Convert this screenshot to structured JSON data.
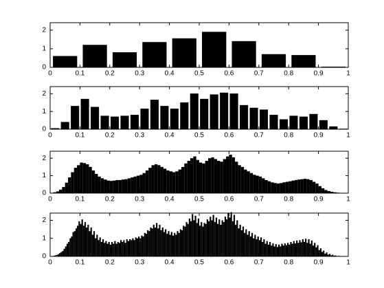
{
  "chart_data": [
    {
      "type": "histogram",
      "color": "#000000",
      "xlim": [
        0,
        1
      ],
      "ylim": [
        0,
        2.4
      ],
      "xticks": [
        0,
        0.1,
        0.2,
        0.3,
        0.4,
        0.5,
        0.6,
        0.7,
        0.8,
        0.9,
        1
      ],
      "yticks": [
        0,
        1,
        2
      ],
      "bins": [
        0,
        0.1,
        0.2,
        0.3,
        0.4,
        0.5,
        0.6,
        0.7,
        0.8,
        0.9,
        1
      ],
      "values": [
        0.6,
        1.2,
        0.8,
        1.35,
        1.55,
        1.9,
        1.4,
        0.7,
        0.65,
        0.03
      ]
    },
    {
      "type": "histogram",
      "color": "#000000",
      "xlim": [
        0,
        1
      ],
      "ylim": [
        0,
        2.4
      ],
      "xticks": [
        0,
        0.1,
        0.2,
        0.3,
        0.4,
        0.5,
        0.6,
        0.7,
        0.8,
        0.9,
        1
      ],
      "yticks": [
        0,
        1,
        2
      ],
      "bins": [
        0,
        0.0333,
        0.0667,
        0.1,
        0.1333,
        0.1667,
        0.2,
        0.2333,
        0.2667,
        0.3,
        0.3333,
        0.3667,
        0.4,
        0.4333,
        0.4667,
        0.5,
        0.5333,
        0.5667,
        0.6,
        0.6333,
        0.6667,
        0.7,
        0.7333,
        0.7667,
        0.8,
        0.8333,
        0.8667,
        0.9,
        0.9333,
        0.9667,
        1
      ],
      "values": [
        0.05,
        0.4,
        1.3,
        1.7,
        1.25,
        0.75,
        0.7,
        0.75,
        0.8,
        1.15,
        1.65,
        1.3,
        1.15,
        1.5,
        2.0,
        1.7,
        1.95,
        2.05,
        2.0,
        1.35,
        1.2,
        1.1,
        0.8,
        0.55,
        0.75,
        0.7,
        0.85,
        0.5,
        0.15,
        0.02
      ]
    },
    {
      "type": "histogram",
      "color": "#000000",
      "xlim": [
        0,
        1
      ],
      "ylim": [
        0,
        2.4
      ],
      "xticks": [
        0,
        0.1,
        0.2,
        0.3,
        0.4,
        0.5,
        0.6,
        0.7,
        0.8,
        0.9,
        1
      ],
      "yticks": [
        0,
        1,
        2
      ],
      "bins": [
        0,
        0.01,
        0.02,
        0.03,
        0.04,
        0.05,
        0.06,
        0.07,
        0.08,
        0.09,
        0.1,
        0.11,
        0.12,
        0.13,
        0.14,
        0.15,
        0.16,
        0.17,
        0.18,
        0.19,
        0.2,
        0.21,
        0.22,
        0.23,
        0.24,
        0.25,
        0.26,
        0.27,
        0.28,
        0.29,
        0.3,
        0.31,
        0.32,
        0.33,
        0.34,
        0.35,
        0.36,
        0.37,
        0.38,
        0.39,
        0.4,
        0.41,
        0.42,
        0.43,
        0.44,
        0.45,
        0.46,
        0.47,
        0.48,
        0.49,
        0.5,
        0.51,
        0.52,
        0.53,
        0.54,
        0.55,
        0.56,
        0.57,
        0.58,
        0.59,
        0.6,
        0.61,
        0.62,
        0.63,
        0.64,
        0.65,
        0.66,
        0.67,
        0.68,
        0.69,
        0.7,
        0.71,
        0.72,
        0.73,
        0.74,
        0.75,
        0.76,
        0.77,
        0.78,
        0.79,
        0.8,
        0.81,
        0.82,
        0.83,
        0.84,
        0.85,
        0.86,
        0.87,
        0.88,
        0.89,
        0.9,
        0.91,
        0.92,
        0.93,
        0.94,
        0.95,
        0.96,
        0.97,
        0.98,
        0.99,
        1
      ],
      "values": [
        0.02,
        0.05,
        0.1,
        0.2,
        0.35,
        0.6,
        0.9,
        1.2,
        1.45,
        1.6,
        1.75,
        1.72,
        1.65,
        1.5,
        1.3,
        1.1,
        0.95,
        0.85,
        0.78,
        0.72,
        0.7,
        0.72,
        0.75,
        0.75,
        0.78,
        0.8,
        0.85,
        0.9,
        0.95,
        1.0,
        1.05,
        1.15,
        1.3,
        1.45,
        1.6,
        1.65,
        1.6,
        1.5,
        1.4,
        1.3,
        1.25,
        1.2,
        1.25,
        1.35,
        1.5,
        1.7,
        1.85,
        2.0,
        2.1,
        1.9,
        1.75,
        1.7,
        1.85,
        2.0,
        2.05,
        1.95,
        1.85,
        1.8,
        1.95,
        2.1,
        2.2,
        2.05,
        1.8,
        1.6,
        1.5,
        1.35,
        1.25,
        1.15,
        1.05,
        1.0,
        0.95,
        0.85,
        0.75,
        0.68,
        0.62,
        0.58,
        0.55,
        0.58,
        0.62,
        0.65,
        0.68,
        0.72,
        0.75,
        0.78,
        0.8,
        0.82,
        0.8,
        0.75,
        0.65,
        0.55,
        0.4,
        0.28,
        0.18,
        0.12,
        0.08,
        0.05,
        0.03,
        0.02,
        0.01,
        0
      ]
    },
    {
      "type": "histogram",
      "color": "#000000",
      "xlim": [
        0,
        1
      ],
      "ylim": [
        0,
        2.4
      ],
      "xticks": [
        0,
        0.1,
        0.2,
        0.3,
        0.4,
        0.5,
        0.6,
        0.7,
        0.8,
        0.9,
        1
      ],
      "yticks": [
        0,
        1,
        2
      ],
      "bins": [
        0,
        0.005,
        0.01,
        0.015,
        0.02,
        0.025,
        0.03,
        0.035,
        0.04,
        0.045,
        0.05,
        0.055,
        0.06,
        0.065,
        0.07,
        0.075,
        0.08,
        0.085,
        0.09,
        0.095,
        0.1,
        0.105,
        0.11,
        0.115,
        0.12,
        0.125,
        0.13,
        0.135,
        0.14,
        0.145,
        0.15,
        0.155,
        0.16,
        0.165,
        0.17,
        0.175,
        0.18,
        0.185,
        0.19,
        0.195,
        0.2,
        0.205,
        0.21,
        0.215,
        0.22,
        0.225,
        0.23,
        0.235,
        0.24,
        0.245,
        0.25,
        0.255,
        0.26,
        0.265,
        0.27,
        0.275,
        0.28,
        0.285,
        0.29,
        0.295,
        0.3,
        0.305,
        0.31,
        0.315,
        0.32,
        0.325,
        0.33,
        0.335,
        0.34,
        0.345,
        0.35,
        0.355,
        0.36,
        0.365,
        0.37,
        0.375,
        0.38,
        0.385,
        0.39,
        0.395,
        0.4,
        0.405,
        0.41,
        0.415,
        0.42,
        0.425,
        0.43,
        0.435,
        0.44,
        0.445,
        0.45,
        0.455,
        0.46,
        0.465,
        0.47,
        0.475,
        0.48,
        0.485,
        0.49,
        0.495,
        0.5,
        0.505,
        0.51,
        0.515,
        0.52,
        0.525,
        0.53,
        0.535,
        0.54,
        0.545,
        0.55,
        0.555,
        0.56,
        0.565,
        0.57,
        0.575,
        0.58,
        0.585,
        0.59,
        0.595,
        0.6,
        0.605,
        0.61,
        0.615,
        0.62,
        0.625,
        0.63,
        0.635,
        0.64,
        0.645,
        0.65,
        0.655,
        0.66,
        0.665,
        0.67,
        0.675,
        0.68,
        0.685,
        0.69,
        0.695,
        0.7,
        0.705,
        0.71,
        0.715,
        0.72,
        0.725,
        0.73,
        0.735,
        0.74,
        0.745,
        0.75,
        0.755,
        0.76,
        0.765,
        0.77,
        0.775,
        0.78,
        0.785,
        0.79,
        0.795,
        0.8,
        0.805,
        0.81,
        0.815,
        0.82,
        0.825,
        0.83,
        0.835,
        0.84,
        0.845,
        0.85,
        0.855,
        0.86,
        0.865,
        0.87,
        0.875,
        0.88,
        0.885,
        0.89,
        0.895,
        0.9,
        0.905,
        0.91,
        0.915,
        0.92,
        0.925,
        0.93,
        0.935,
        0.94,
        0.945,
        0.95,
        0.955,
        0.96,
        0.965,
        0.97,
        0.975,
        0.98,
        0.985,
        0.99,
        0.995,
        1
      ],
      "values": [
        0.01,
        0.02,
        0.03,
        0.06,
        0.08,
        0.12,
        0.18,
        0.24,
        0.3,
        0.42,
        0.55,
        0.7,
        0.8,
        1.0,
        1.1,
        1.35,
        1.4,
        1.55,
        1.7,
        1.95,
        1.8,
        2.05,
        1.7,
        1.9,
        1.6,
        1.75,
        1.4,
        1.6,
        1.2,
        1.4,
        1.0,
        1.2,
        0.9,
        1.05,
        0.8,
        0.95,
        0.75,
        0.85,
        0.7,
        0.8,
        0.65,
        0.8,
        0.7,
        0.85,
        0.7,
        0.8,
        0.75,
        0.9,
        0.8,
        0.9,
        0.75,
        0.95,
        0.85,
        0.95,
        0.9,
        1.0,
        0.9,
        1.05,
        1.0,
        1.1,
        1.0,
        1.15,
        1.1,
        1.3,
        1.25,
        1.45,
        1.4,
        1.6,
        1.55,
        1.75,
        1.6,
        1.85,
        1.55,
        1.75,
        1.45,
        1.6,
        1.35,
        1.5,
        1.25,
        1.4,
        1.2,
        1.35,
        1.15,
        1.3,
        1.2,
        1.4,
        1.3,
        1.5,
        1.45,
        1.7,
        1.65,
        1.9,
        1.8,
        2.1,
        1.95,
        2.35,
        2.0,
        2.25,
        1.85,
        2.1,
        1.7,
        1.9,
        1.65,
        1.85,
        1.8,
        2.05,
        1.95,
        2.2,
        2.0,
        2.3,
        1.9,
        2.15,
        1.8,
        2.05,
        1.75,
        2.0,
        1.9,
        2.2,
        2.05,
        2.4,
        2.15,
        2.45,
        1.95,
        2.3,
        1.75,
        2.0,
        1.55,
        1.75,
        1.45,
        1.65,
        1.3,
        1.5,
        1.2,
        1.4,
        1.1,
        1.3,
        1.0,
        1.2,
        0.95,
        1.1,
        0.9,
        1.05,
        0.8,
        0.95,
        0.7,
        0.85,
        0.65,
        0.8,
        0.6,
        0.72,
        0.55,
        0.68,
        0.52,
        0.65,
        0.55,
        0.7,
        0.6,
        0.72,
        0.62,
        0.75,
        0.65,
        0.8,
        0.7,
        0.85,
        0.72,
        0.88,
        0.75,
        0.9,
        0.78,
        0.95,
        0.8,
        0.98,
        0.75,
        0.95,
        0.7,
        0.88,
        0.6,
        0.75,
        0.5,
        0.62,
        0.35,
        0.45,
        0.25,
        0.32,
        0.15,
        0.22,
        0.1,
        0.14,
        0.06,
        0.09,
        0.04,
        0.05,
        0.02,
        0.03,
        0.01,
        0.02,
        0.01,
        0,
        0,
        0
      ]
    }
  ]
}
